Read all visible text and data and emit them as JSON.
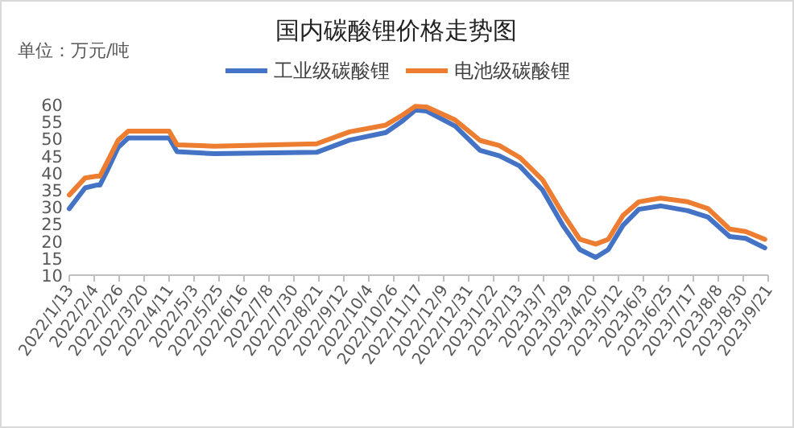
{
  "chart_data": {
    "type": "line",
    "title": "国内碳酸锂价格走势图",
    "ylabel": "单位：万元/吨",
    "legend": "top",
    "grid": false,
    "line_style": "solid",
    "x": [
      "2022-01-13",
      "2022-01-27",
      "2022-02-06",
      "2022-02-09",
      "2022-02-16",
      "2022-02-25",
      "2022-03-06",
      "2022-04-11",
      "2022-04-18",
      "2022-05-21",
      "2022-08-19",
      "2022-09-17",
      "2022-10-19",
      "2022-11-03",
      "2022-11-14",
      "2022-11-24",
      "2022-12-19",
      "2023-01-10",
      "2023-01-27",
      "2023-02-14",
      "2023-03-06",
      "2023-03-24",
      "2023-04-08",
      "2023-04-22",
      "2023-05-03",
      "2023-05-16",
      "2023-05-30",
      "2023-06-18",
      "2023-07-12",
      "2023-07-30",
      "2023-08-18",
      "2023-09-01",
      "2023-09-18"
    ],
    "series": [
      {
        "name": "工业级碳酸锂",
        "color": "#4472c4",
        "values": [
          29.5,
          35.6,
          36.4,
          36.4,
          41,
          47.4,
          50.2,
          50.2,
          46.2,
          45.6,
          46,
          49.6,
          51.8,
          55.3,
          58.4,
          58.1,
          53.7,
          46.6,
          45,
          42,
          35,
          24.6,
          17.5,
          15.2,
          17.5,
          24.6,
          29.3,
          30.3,
          28.9,
          27,
          21.3,
          20.8,
          18
        ]
      },
      {
        "name": "电池级碳酸锂",
        "color": "#ed7d31",
        "values": [
          33.5,
          38.5,
          39,
          39,
          43.5,
          49.5,
          52.2,
          52.2,
          48.2,
          47.8,
          48.5,
          52,
          54,
          57,
          59.5,
          59.3,
          55.5,
          49.5,
          48,
          44.5,
          38,
          28,
          20.5,
          19.1,
          20.5,
          27.5,
          31.5,
          32.6,
          31.5,
          29.5,
          23.5,
          22.8,
          20.5
        ]
      }
    ],
    "xlim": [
      "2022-01-13",
      "2023-09-21"
    ],
    "xticks": [
      {
        "value": "2022-01-13",
        "label": "2022/1/13"
      },
      {
        "value": "2022-02-04",
        "label": "2022/2/4"
      },
      {
        "value": "2022-02-26",
        "label": "2022/2/26"
      },
      {
        "value": "2022-03-20",
        "label": "2022/3/20"
      },
      {
        "value": "2022-04-11",
        "label": "2022/4/11"
      },
      {
        "value": "2022-05-03",
        "label": "2022/5/3"
      },
      {
        "value": "2022-05-25",
        "label": "2022/5/25"
      },
      {
        "value": "2022-06-16",
        "label": "2022/6/16"
      },
      {
        "value": "2022-07-08",
        "label": "2022/7/8"
      },
      {
        "value": "2022-07-30",
        "label": "2022/7/30"
      },
      {
        "value": "2022-08-21",
        "label": "2022/8/21"
      },
      {
        "value": "2022-09-12",
        "label": "2022/9/12"
      },
      {
        "value": "2022-10-04",
        "label": "2022/10/4"
      },
      {
        "value": "2022-10-26",
        "label": "2022/10/26"
      },
      {
        "value": "2022-11-17",
        "label": "2022/11/17"
      },
      {
        "value": "2022-12-09",
        "label": "2022/12/9"
      },
      {
        "value": "2022-12-31",
        "label": "2022/12/31"
      },
      {
        "value": "2023-01-22",
        "label": "2023/1/22"
      },
      {
        "value": "2023-02-13",
        "label": "2023/2/13"
      },
      {
        "value": "2023-03-07",
        "label": "2023/3/7"
      },
      {
        "value": "2023-03-29",
        "label": "2023/3/29"
      },
      {
        "value": "2023-04-20",
        "label": "2023/4/20"
      },
      {
        "value": "2023-05-12",
        "label": "2023/5/12"
      },
      {
        "value": "2023-06-03",
        "label": "2023/6/3"
      },
      {
        "value": "2023-06-25",
        "label": "2023/6/25"
      },
      {
        "value": "2023-07-17",
        "label": "2023/7/17"
      },
      {
        "value": "2023-08-08",
        "label": "2023/8/8"
      },
      {
        "value": "2023-08-30",
        "label": "2023/8/30"
      },
      {
        "value": "2023-09-21",
        "label": "2023/9/21"
      }
    ],
    "ylim": [
      10,
      60
    ],
    "yticks": [
      10,
      15,
      20,
      25,
      30,
      35,
      40,
      45,
      50,
      55,
      60
    ]
  }
}
